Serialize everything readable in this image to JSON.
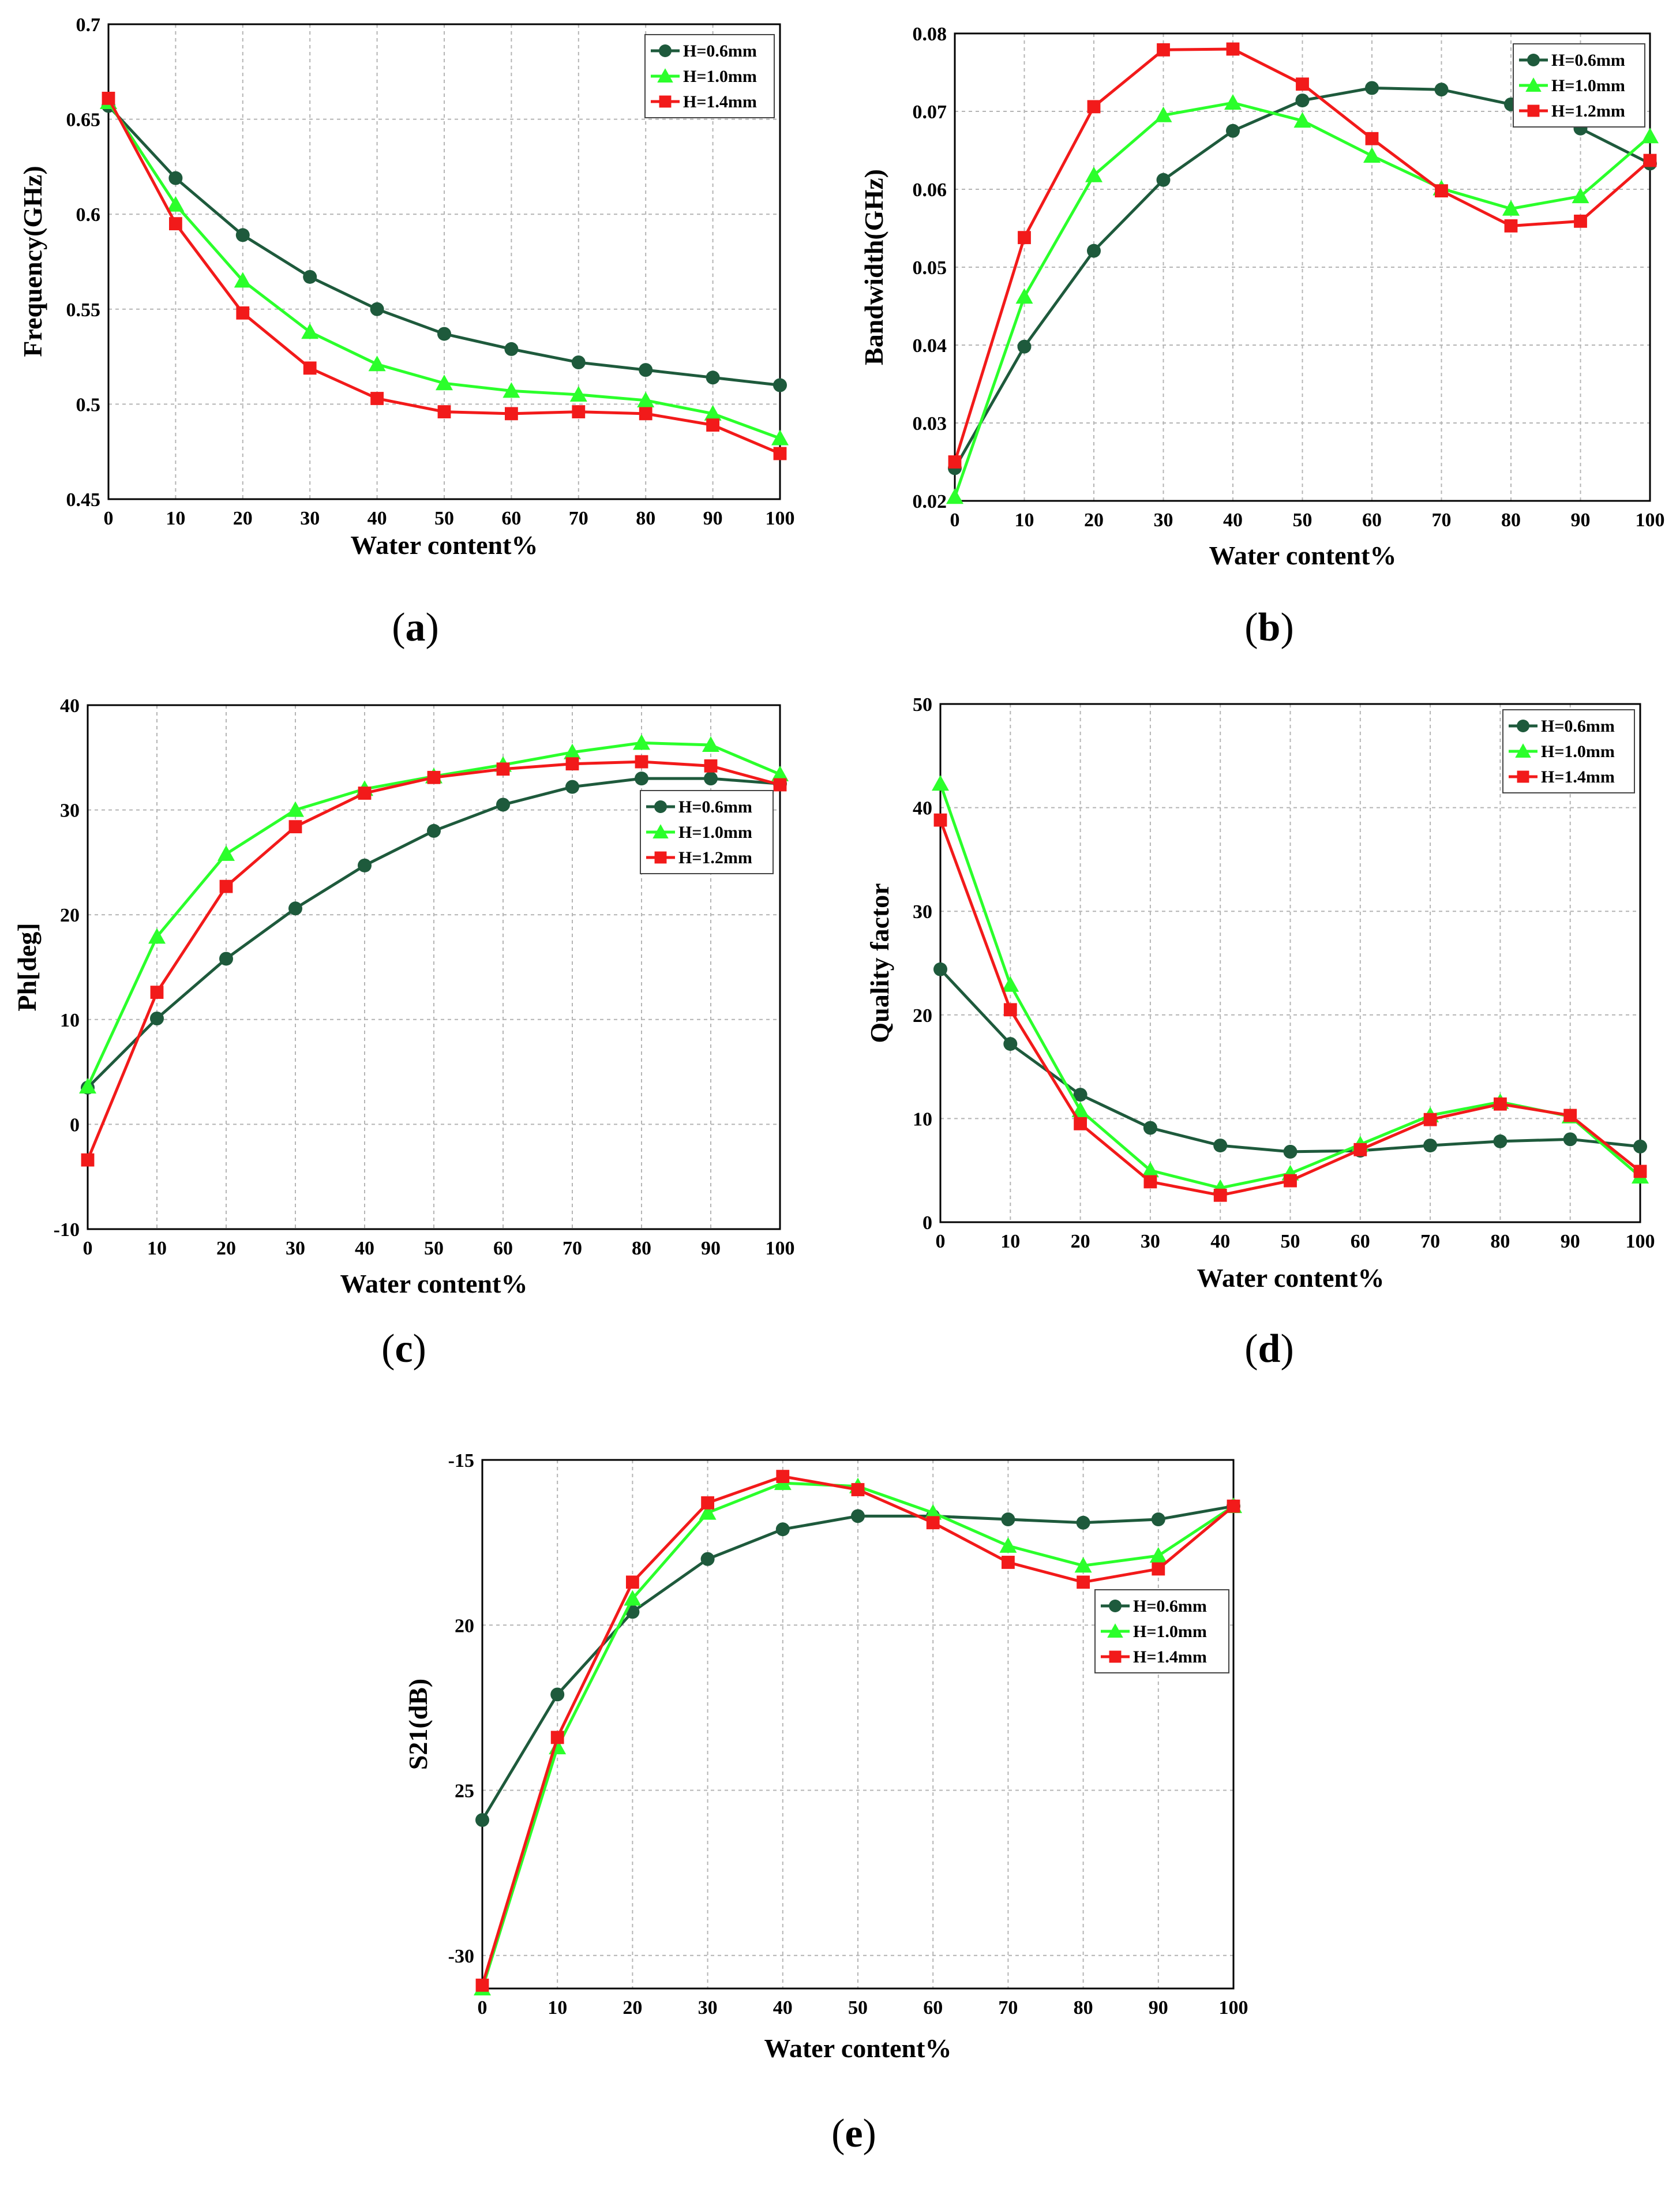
{
  "colors": {
    "s1": "#1e5a3c",
    "s2": "#2bff2b",
    "s3": "#f21a1a"
  },
  "chart_data": [
    {
      "type": "line",
      "caption_label": "a",
      "xlabel": "Water content%",
      "ylabel": "Frequency(GHz)",
      "x": [
        0,
        10,
        20,
        30,
        40,
        50,
        60,
        70,
        80,
        90,
        100
      ],
      "xticks": [
        "0",
        "10",
        "20",
        "30",
        "40",
        "50",
        "60",
        "70",
        "80",
        "90",
        "100"
      ],
      "ylim": [
        0.45,
        0.7
      ],
      "yticks": [
        "0.45",
        "0.5",
        "0.55",
        "0.6",
        "0.65",
        "0.7"
      ],
      "legend_position": "top-right",
      "series": [
        {
          "name": "H=0.6mm",
          "values": [
            0.657,
            0.619,
            0.589,
            0.567,
            0.55,
            0.537,
            0.529,
            0.522,
            0.518,
            0.514,
            0.51
          ]
        },
        {
          "name": "H=1.0mm",
          "values": [
            0.659,
            0.605,
            0.565,
            0.538,
            0.521,
            0.511,
            0.507,
            0.505,
            0.502,
            0.495,
            0.482
          ]
        },
        {
          "name": "H=1.4mm",
          "values": [
            0.661,
            0.595,
            0.548,
            0.519,
            0.503,
            0.496,
            0.495,
            0.496,
            0.495,
            0.489,
            0.474
          ]
        }
      ]
    },
    {
      "type": "line",
      "caption_label": "b",
      "xlabel": "Water content%",
      "ylabel": "Bandwidth(GHz)",
      "x": [
        0,
        10,
        20,
        30,
        40,
        50,
        60,
        70,
        80,
        90,
        100
      ],
      "xticks": [
        "0",
        "10",
        "20",
        "30",
        "40",
        "50",
        "60",
        "70",
        "80",
        "90",
        "100"
      ],
      "ylim": [
        0.02,
        0.08
      ],
      "yticks": [
        "0.02",
        "0.03",
        "0.04",
        "0.05",
        "0.06",
        "0.07",
        "0.08"
      ],
      "legend_position": "top-right",
      "series": [
        {
          "name": "H=0.6mm",
          "values": [
            0.0242,
            0.0398,
            0.0521,
            0.0612,
            0.0675,
            0.0714,
            0.073,
            0.0728,
            0.0709,
            0.0678,
            0.0633
          ]
        },
        {
          "name": "H=1.0mm",
          "values": [
            0.0205,
            0.0462,
            0.0618,
            0.0695,
            0.0711,
            0.0688,
            0.0643,
            0.0601,
            0.0575,
            0.0591,
            0.0668
          ]
        },
        {
          "name": "H=1.2mm",
          "values": [
            0.025,
            0.0538,
            0.0706,
            0.0779,
            0.078,
            0.0735,
            0.0665,
            0.0598,
            0.0553,
            0.0559,
            0.0637
          ]
        }
      ]
    },
    {
      "type": "line",
      "caption_label": "c",
      "xlabel": "Water content%",
      "ylabel": "Ph[deg]",
      "x": [
        0,
        10,
        20,
        30,
        40,
        50,
        60,
        70,
        80,
        90,
        100
      ],
      "xticks": [
        "0",
        "10",
        "20",
        "30",
        "40",
        "50",
        "60",
        "70",
        "80",
        "90",
        "100"
      ],
      "ylim": [
        -10,
        40
      ],
      "yticks": [
        "-10",
        "0",
        "10",
        "20",
        "30",
        "40"
      ],
      "legend_position": "center-right",
      "series": [
        {
          "name": "H=0.6mm",
          "values": [
            3.5,
            10.1,
            15.8,
            20.6,
            24.7,
            28.0,
            30.5,
            32.2,
            33.0,
            33.0,
            32.5
          ]
        },
        {
          "name": "H=1.0mm",
          "values": [
            3.6,
            17.9,
            25.8,
            30.0,
            32.0,
            33.2,
            34.3,
            35.5,
            36.4,
            36.2,
            33.4
          ]
        },
        {
          "name": "H=1.2mm",
          "values": [
            -3.4,
            12.6,
            22.7,
            28.4,
            31.6,
            33.1,
            33.9,
            34.4,
            34.6,
            34.2,
            32.4
          ]
        }
      ]
    },
    {
      "type": "line",
      "caption_label": "d",
      "xlabel": "Water content%",
      "ylabel": "Quality factor",
      "x": [
        0,
        10,
        20,
        30,
        40,
        50,
        60,
        70,
        80,
        90,
        100
      ],
      "xticks": [
        "0",
        "10",
        "20",
        "30",
        "40",
        "50",
        "60",
        "70",
        "80",
        "90",
        "100"
      ],
      "ylim": [
        0,
        50
      ],
      "yticks": [
        "0",
        "10",
        "20",
        "30",
        "40",
        "50"
      ],
      "legend_position": "top-right",
      "series": [
        {
          "name": "H=0.6mm",
          "values": [
            24.4,
            17.2,
            12.3,
            9.1,
            7.4,
            6.8,
            6.9,
            7.4,
            7.8,
            8.0,
            7.3
          ]
        },
        {
          "name": "H=1.0mm",
          "values": [
            42.3,
            22.9,
            10.8,
            5.0,
            3.3,
            4.7,
            7.5,
            10.3,
            11.6,
            10.2,
            4.4
          ]
        },
        {
          "name": "H=1.4mm",
          "values": [
            38.8,
            20.5,
            9.5,
            3.9,
            2.6,
            4.0,
            7.0,
            9.9,
            11.4,
            10.3,
            4.9
          ]
        }
      ]
    },
    {
      "type": "line",
      "caption_label": "e",
      "xlabel": "Water content%",
      "ylabel": "S21(dB)",
      "x": [
        0,
        10,
        20,
        30,
        40,
        50,
        60,
        70,
        80,
        90,
        100
      ],
      "xticks": [
        "0",
        "10",
        "20",
        "30",
        "40",
        "50",
        "60",
        "70",
        "80",
        "90",
        "100"
      ],
      "ylim": [
        -31,
        -15
      ],
      "yticks": [
        "-15",
        "20",
        "25",
        "-30"
      ],
      "ytick_values": [
        -15,
        -20,
        -25,
        -30
      ],
      "legend_position": "center-right",
      "series": [
        {
          "name": "H=0.6mm",
          "values": [
            -25.9,
            -22.1,
            -19.6,
            -18.0,
            -17.1,
            -16.7,
            -16.7,
            -16.8,
            -16.9,
            -16.8,
            -16.4
          ]
        },
        {
          "name": "H=1.0mm",
          "values": [
            -31.0,
            -23.7,
            -19.2,
            -16.6,
            -15.7,
            -15.8,
            -16.6,
            -17.6,
            -18.2,
            -17.9,
            -16.4
          ]
        },
        {
          "name": "H=1.4mm",
          "values": [
            -30.9,
            -23.4,
            -18.7,
            -16.3,
            -15.5,
            -15.9,
            -16.9,
            -18.1,
            -18.7,
            -18.3,
            -16.4
          ]
        }
      ]
    }
  ]
}
